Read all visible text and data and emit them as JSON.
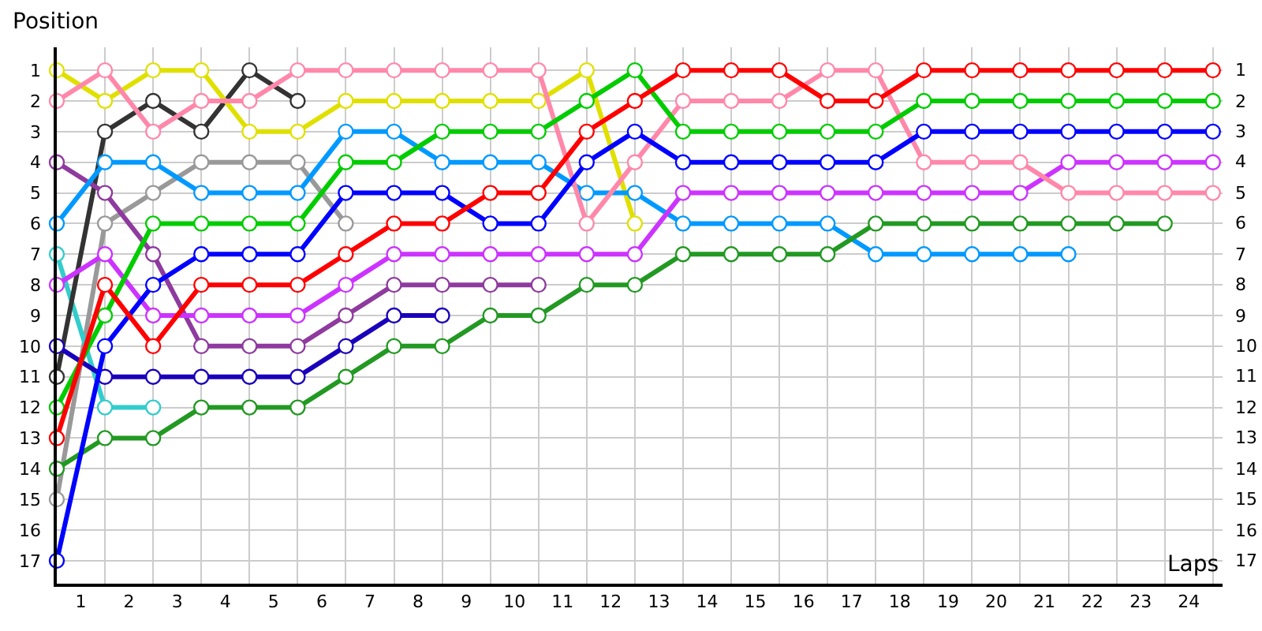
{
  "chart_data": {
    "type": "line",
    "xlabel": "Laps",
    "ylabel": "Position",
    "x": [
      0,
      1,
      2,
      3,
      4,
      5,
      6,
      7,
      8,
      9,
      10,
      11,
      12,
      13,
      14,
      15,
      16,
      17,
      18,
      19,
      20,
      21,
      22,
      23,
      24
    ],
    "xlim": [
      0,
      24.2
    ],
    "xticks": [
      {
        "value": 0.5,
        "label": "1"
      },
      {
        "value": 1.5,
        "label": "2"
      },
      {
        "value": 2.5,
        "label": "3"
      },
      {
        "value": 3.5,
        "label": "4"
      },
      {
        "value": 4.5,
        "label": "5"
      },
      {
        "value": 5.5,
        "label": "6"
      },
      {
        "value": 6.5,
        "label": "7"
      },
      {
        "value": 7.5,
        "label": "8"
      },
      {
        "value": 8.5,
        "label": "9"
      },
      {
        "value": 9.5,
        "label": "10"
      },
      {
        "value": 10.5,
        "label": "11"
      },
      {
        "value": 11.5,
        "label": "12"
      },
      {
        "value": 12.5,
        "label": "13"
      },
      {
        "value": 13.5,
        "label": "14"
      },
      {
        "value": 14.5,
        "label": "15"
      },
      {
        "value": 15.5,
        "label": "16"
      },
      {
        "value": 16.5,
        "label": "17"
      },
      {
        "value": 17.5,
        "label": "18"
      },
      {
        "value": 18.5,
        "label": "19"
      },
      {
        "value": 19.5,
        "label": "20"
      },
      {
        "value": 20.5,
        "label": "21"
      },
      {
        "value": 21.5,
        "label": "22"
      },
      {
        "value": 22.5,
        "label": "23"
      },
      {
        "value": 23.5,
        "label": "24"
      }
    ],
    "ylim": [
      17.75,
      0.25
    ],
    "yticks": [
      1,
      2,
      3,
      4,
      5,
      6,
      7,
      8,
      9,
      10,
      11,
      12,
      13,
      14,
      15,
      16,
      17
    ],
    "y2lim": [
      17.75,
      0.25
    ],
    "y2ticks": [
      1,
      2,
      3,
      4,
      5,
      6,
      7,
      8,
      9,
      10,
      11,
      12,
      13,
      14,
      15,
      16,
      17
    ],
    "grid": true,
    "legend": false,
    "marker": "circle",
    "line_style": "solid",
    "series": [
      {
        "color": "#999999",
        "values": [
          15,
          6,
          5,
          4,
          4,
          4,
          6,
          null,
          null,
          null,
          null,
          null,
          null,
          null,
          null,
          null,
          null,
          null,
          null,
          null,
          null,
          null,
          null,
          null,
          null
        ]
      },
      {
        "color": "#33cccc",
        "values": [
          7,
          12,
          12,
          null,
          null,
          null,
          null,
          null,
          null,
          null,
          null,
          null,
          null,
          null,
          null,
          null,
          null,
          null,
          null,
          null,
          null,
          null,
          null,
          null,
          null
        ]
      },
      {
        "color": "#333333",
        "values": [
          11,
          3,
          2,
          3,
          1,
          2,
          null,
          null,
          null,
          null,
          null,
          null,
          null,
          null,
          null,
          null,
          null,
          null,
          null,
          null,
          null,
          null,
          null,
          null,
          null
        ]
      },
      {
        "color": "#1a00bb",
        "values": [
          10,
          11,
          11,
          11,
          11,
          11,
          10,
          9,
          9,
          null,
          null,
          null,
          null,
          null,
          null,
          null,
          null,
          null,
          null,
          null,
          null,
          null,
          null,
          null,
          null
        ]
      },
      {
        "color": "#8e3a9e",
        "values": [
          4,
          5,
          7,
          10,
          10,
          10,
          9,
          8,
          8,
          8,
          8,
          null,
          null,
          null,
          null,
          null,
          null,
          null,
          null,
          null,
          null,
          null,
          null,
          null,
          null
        ]
      },
      {
        "color": "#e0e000",
        "values": [
          1,
          2,
          1,
          1,
          3,
          3,
          2,
          2,
          2,
          2,
          2,
          1,
          6,
          null,
          null,
          null,
          null,
          null,
          null,
          null,
          null,
          null,
          null,
          null,
          null
        ]
      },
      {
        "color": "#0099ff",
        "values": [
          6,
          4,
          4,
          5,
          5,
          5,
          3,
          3,
          4,
          4,
          4,
          5,
          5,
          6,
          6,
          6,
          6,
          7,
          7,
          7,
          7,
          7,
          null,
          null,
          null
        ]
      },
      {
        "color": "#229922",
        "values": [
          14,
          13,
          13,
          12,
          12,
          12,
          11,
          10,
          10,
          9,
          9,
          8,
          8,
          7,
          7,
          7,
          7,
          6,
          6,
          6,
          6,
          6,
          6,
          6,
          null
        ]
      },
      {
        "color": "#cc33ff",
        "values": [
          8,
          7,
          9,
          9,
          9,
          9,
          8,
          7,
          7,
          7,
          7,
          7,
          7,
          5,
          5,
          5,
          5,
          5,
          5,
          5,
          5,
          4,
          4,
          4,
          4
        ]
      },
      {
        "color": "#ff88aa",
        "values": [
          2,
          1,
          3,
          2,
          2,
          1,
          1,
          1,
          1,
          1,
          1,
          6,
          4,
          2,
          2,
          2,
          1,
          1,
          4,
          4,
          4,
          5,
          5,
          5,
          5
        ]
      },
      {
        "color": "#0000ff",
        "values": [
          17,
          10,
          8,
          7,
          7,
          7,
          5,
          5,
          5,
          6,
          6,
          4,
          3,
          4,
          4,
          4,
          4,
          4,
          3,
          3,
          3,
          3,
          3,
          3,
          3
        ]
      },
      {
        "color": "#00cc00",
        "values": [
          12,
          9,
          6,
          6,
          6,
          6,
          4,
          4,
          3,
          3,
          3,
          2,
          1,
          3,
          3,
          3,
          3,
          3,
          2,
          2,
          2,
          2,
          2,
          2,
          2
        ]
      },
      {
        "color": "#ff0000",
        "values": [
          13,
          8,
          10,
          8,
          8,
          8,
          7,
          6,
          6,
          5,
          5,
          3,
          2,
          1,
          1,
          1,
          2,
          2,
          1,
          1,
          1,
          1,
          1,
          1,
          1
        ]
      }
    ]
  }
}
